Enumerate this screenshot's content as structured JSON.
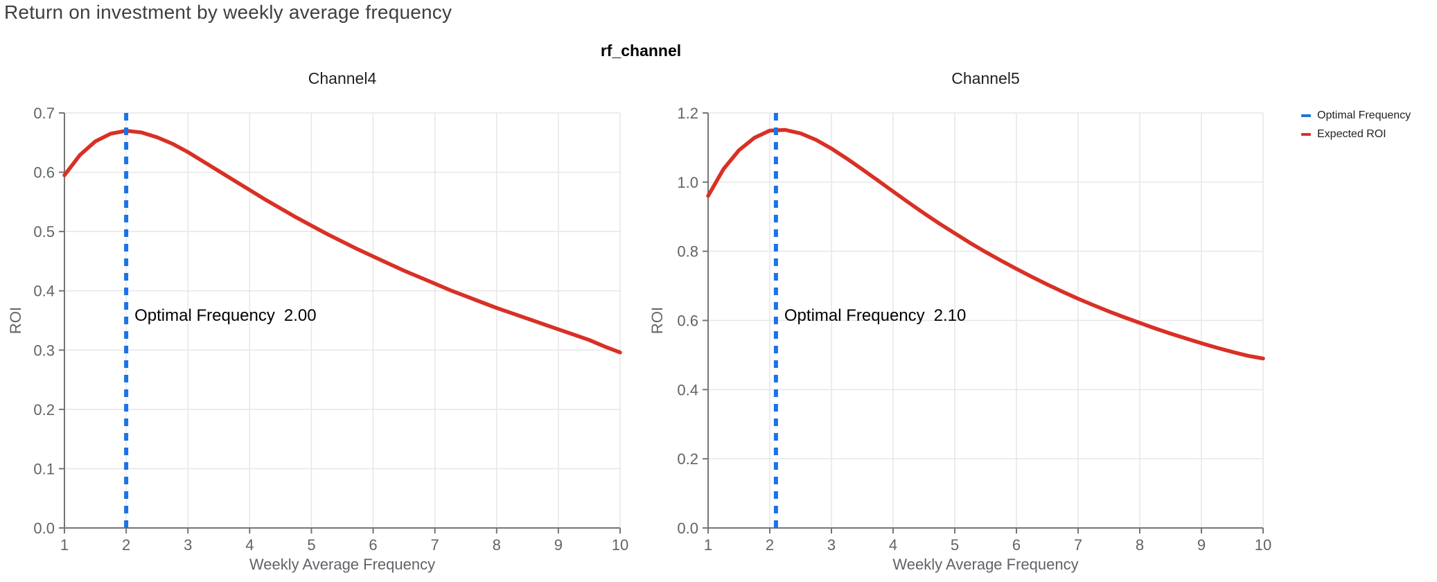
{
  "page": {
    "title": "Return on investment by weekly average frequency",
    "subtitle": "rf_channel"
  },
  "legend": {
    "items": [
      {
        "label": "Optimal Frequency",
        "color": "#1a73e8"
      },
      {
        "label": "Expected ROI",
        "color": "#d93025"
      }
    ]
  },
  "colors": {
    "expected_roi_line": "#d93025",
    "optimal_frequency_line": "#1a73e8",
    "grid_line": "#e6e6e6",
    "axis_line": "#757575",
    "tick_label": "#5f6368",
    "axis_title": "#5f6368",
    "chart_title": "#202124",
    "annotation_text": "#000000",
    "page_title": "#3c4043"
  },
  "chart_data": [
    {
      "type": "line",
      "title": "Channel4",
      "xlabel": "Weekly Average Frequency",
      "ylabel": "ROI",
      "xlim": [
        1,
        10
      ],
      "ylim": [
        0,
        0.7
      ],
      "xticks": [
        1,
        2,
        3,
        4,
        5,
        6,
        7,
        8,
        9,
        10
      ],
      "yticks": [
        0.0,
        0.1,
        0.2,
        0.3,
        0.4,
        0.5,
        0.6,
        0.7
      ],
      "grid": true,
      "optimal_frequency": 2.0,
      "annotation": {
        "label": "Optimal Frequency",
        "value": "2.00"
      },
      "series": [
        {
          "name": "Expected ROI",
          "x": [
            1,
            1.25,
            1.5,
            1.75,
            2,
            2.25,
            2.5,
            2.75,
            3,
            3.25,
            3.5,
            3.75,
            4,
            4.25,
            4.5,
            4.75,
            5,
            5.25,
            5.5,
            5.75,
            6,
            6.25,
            6.5,
            6.75,
            7,
            7.25,
            7.5,
            7.75,
            8,
            8.25,
            8.5,
            8.75,
            9,
            9.25,
            9.5,
            9.75,
            10
          ],
          "y": [
            0.595,
            0.629,
            0.652,
            0.665,
            0.67,
            0.667,
            0.659,
            0.648,
            0.634,
            0.618,
            0.602,
            0.586,
            0.57,
            0.554,
            0.539,
            0.524,
            0.51,
            0.496,
            0.483,
            0.47,
            0.458,
            0.446,
            0.434,
            0.423,
            0.412,
            0.401,
            0.391,
            0.381,
            0.371,
            0.362,
            0.353,
            0.344,
            0.335,
            0.326,
            0.317,
            0.306,
            0.296
          ]
        }
      ]
    },
    {
      "type": "line",
      "title": "Channel5",
      "xlabel": "Weekly Average Frequency",
      "ylabel": "ROI",
      "xlim": [
        1,
        10
      ],
      "ylim": [
        0,
        1.2
      ],
      "xticks": [
        1,
        2,
        3,
        4,
        5,
        6,
        7,
        8,
        9,
        10
      ],
      "yticks": [
        0.0,
        0.2,
        0.4,
        0.6,
        0.8,
        1.0,
        1.2
      ],
      "grid": true,
      "optimal_frequency": 2.1,
      "annotation": {
        "label": "Optimal Frequency",
        "value": "2.10"
      },
      "series": [
        {
          "name": "Expected ROI",
          "x": [
            1,
            1.25,
            1.5,
            1.75,
            2,
            2.25,
            2.5,
            2.75,
            3,
            3.25,
            3.5,
            3.75,
            4,
            4.25,
            4.5,
            4.75,
            5,
            5.25,
            5.5,
            5.75,
            6,
            6.25,
            6.5,
            6.75,
            7,
            7.25,
            7.5,
            7.75,
            8,
            8.25,
            8.5,
            8.75,
            9,
            9.25,
            9.5,
            9.75,
            10
          ],
          "y": [
            0.96,
            1.038,
            1.092,
            1.128,
            1.149,
            1.151,
            1.141,
            1.122,
            1.097,
            1.068,
            1.037,
            1.005,
            0.973,
            0.941,
            0.91,
            0.88,
            0.852,
            0.824,
            0.798,
            0.773,
            0.749,
            0.726,
            0.704,
            0.683,
            0.663,
            0.644,
            0.626,
            0.609,
            0.593,
            0.577,
            0.562,
            0.548,
            0.534,
            0.521,
            0.509,
            0.498,
            0.49
          ]
        }
      ]
    }
  ]
}
